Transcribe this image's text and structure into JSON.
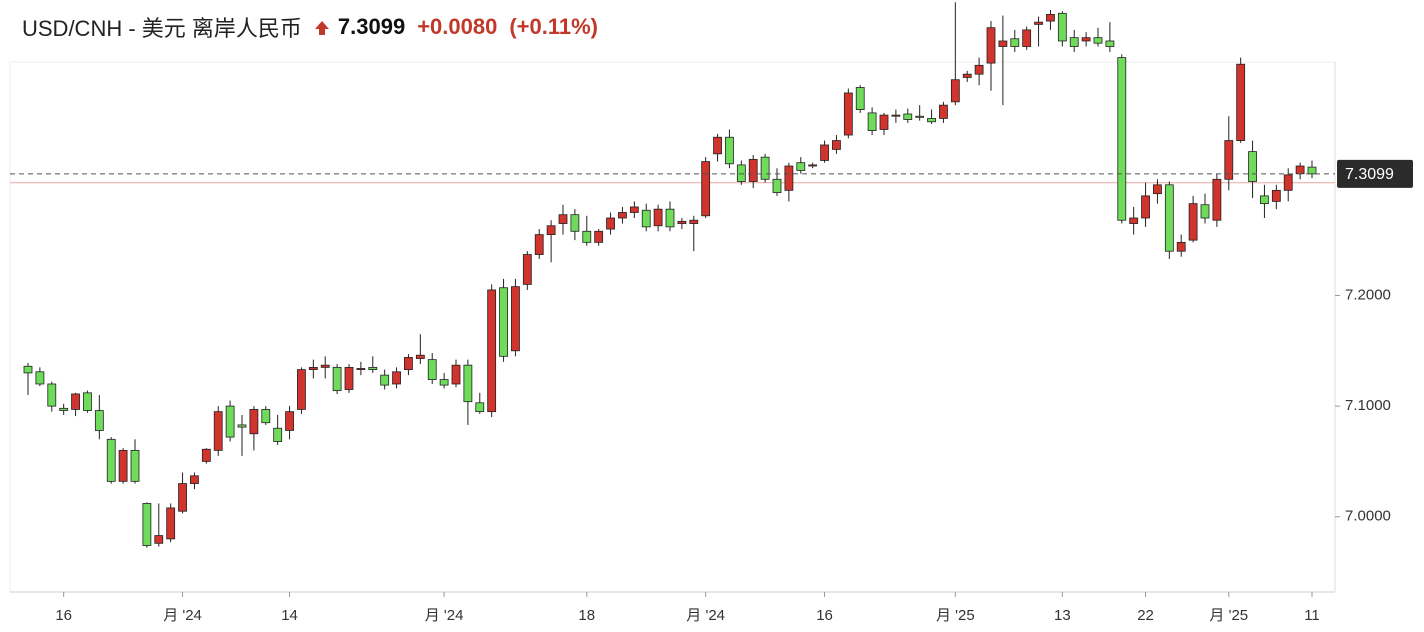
{
  "header": {
    "title": "USD/CNH - 美元 离岸人民币",
    "change": "+0.0080",
    "change_pct": "(+0.11%)"
  },
  "chart_data": {
    "type": "candlestick",
    "categories": [
      null,
      null,
      null,
      "16",
      null,
      null,
      null,
      null,
      null,
      null,
      null,
      null,
      null,
      "月 '24",
      null,
      null,
      null,
      null,
      null,
      null,
      null,
      null,
      "14",
      null,
      null,
      null,
      null,
      null,
      null,
      null,
      null,
      null,
      null,
      null,
      null,
      "月 '24",
      null,
      null,
      null,
      null,
      null,
      null,
      null,
      null,
      null,
      null,
      null,
      "18",
      null,
      null,
      null,
      null,
      null,
      null,
      null,
      null,
      null,
      "月 '24",
      null,
      null,
      null,
      null,
      null,
      null,
      null,
      null,
      null,
      "16",
      null,
      null,
      null,
      null,
      null,
      null,
      null,
      null,
      null,
      null,
      "月 '25",
      null,
      null,
      null,
      null,
      null,
      null,
      null,
      null,
      "13",
      null,
      null,
      null,
      null,
      null,
      null,
      "22",
      null,
      null,
      null,
      null,
      null,
      null,
      "月 '25",
      null,
      null,
      null,
      null,
      null,
      null,
      "11"
    ],
    "open": [
      7.136,
      7.131,
      7.12,
      7.098,
      7.097,
      7.112,
      7.096,
      7.07,
      7.032,
      7.06,
      7.012,
      6.976,
      6.98,
      7.005,
      7.03,
      7.05,
      7.06,
      7.1,
      7.083,
      7.075,
      7.097,
      7.08,
      7.078,
      7.097,
      7.133,
      7.135,
      7.135,
      7.115,
      7.133,
      7.135,
      7.128,
      7.12,
      7.133,
      7.143,
      7.142,
      7.124,
      7.12,
      7.137,
      7.103,
      7.095,
      7.207,
      7.15,
      7.21,
      7.237,
      7.255,
      7.265,
      7.273,
      7.258,
      7.248,
      7.26,
      7.27,
      7.275,
      7.277,
      7.263,
      7.278,
      7.265,
      7.265,
      7.272,
      7.328,
      7.343,
      7.318,
      7.303,
      7.325,
      7.305,
      7.295,
      7.32,
      7.317,
      7.322,
      7.332,
      7.345,
      7.388,
      7.365,
      7.35,
      7.362,
      7.364,
      7.362,
      7.36,
      7.36,
      7.375,
      7.397,
      7.4,
      7.41,
      7.425,
      7.432,
      7.425,
      7.445,
      7.448,
      7.455,
      7.433,
      7.43,
      7.433,
      7.43,
      7.415,
      7.265,
      7.27,
      7.292,
      7.3,
      7.24,
      7.25,
      7.282,
      7.268,
      7.305,
      7.34,
      7.33,
      7.29,
      7.285,
      7.295,
      7.31,
      7.316
    ],
    "high": [
      7.139,
      7.135,
      7.122,
      7.102,
      7.112,
      7.114,
      7.11,
      7.072,
      7.062,
      7.07,
      7.013,
      7.012,
      7.012,
      7.04,
      7.04,
      7.062,
      7.1,
      7.105,
      7.092,
      7.1,
      7.1,
      7.092,
      7.1,
      7.135,
      7.142,
      7.145,
      7.138,
      7.138,
      7.14,
      7.145,
      7.133,
      7.135,
      7.147,
      7.165,
      7.148,
      7.13,
      7.142,
      7.142,
      7.112,
      7.21,
      7.215,
      7.215,
      7.24,
      7.26,
      7.268,
      7.282,
      7.278,
      7.272,
      7.26,
      7.275,
      7.28,
      7.285,
      7.283,
      7.282,
      7.285,
      7.27,
      7.272,
      7.325,
      7.346,
      7.35,
      7.322,
      7.327,
      7.328,
      7.315,
      7.32,
      7.325,
      7.32,
      7.34,
      7.345,
      7.387,
      7.39,
      7.37,
      7.365,
      7.368,
      7.369,
      7.372,
      7.368,
      7.375,
      7.465,
      7.403,
      7.415,
      7.448,
      7.453,
      7.44,
      7.443,
      7.452,
      7.458,
      7.457,
      7.44,
      7.438,
      7.442,
      7.447,
      7.418,
      7.28,
      7.302,
      7.305,
      7.303,
      7.255,
      7.29,
      7.292,
      7.31,
      7.362,
      7.415,
      7.34,
      7.3,
      7.3,
      7.315,
      7.32,
      7.322
    ],
    "low": [
      7.11,
      7.118,
      7.095,
      7.092,
      7.091,
      7.094,
      7.07,
      7.03,
      7.03,
      7.03,
      6.972,
      6.973,
      6.977,
      7.003,
      7.025,
      7.048,
      7.055,
      7.068,
      7.055,
      7.06,
      7.083,
      7.065,
      7.07,
      7.093,
      7.125,
      7.125,
      7.111,
      7.112,
      7.128,
      7.13,
      7.115,
      7.116,
      7.128,
      7.138,
      7.12,
      7.116,
      7.117,
      7.083,
      7.093,
      7.09,
      7.14,
      7.145,
      7.205,
      7.233,
      7.23,
      7.255,
      7.25,
      7.245,
      7.245,
      7.255,
      7.265,
      7.27,
      7.258,
      7.258,
      7.258,
      7.26,
      7.24,
      7.27,
      7.321,
      7.315,
      7.3,
      7.297,
      7.302,
      7.29,
      7.285,
      7.31,
      7.315,
      7.32,
      7.328,
      7.342,
      7.365,
      7.345,
      7.345,
      7.356,
      7.356,
      7.358,
      7.355,
      7.356,
      7.372,
      7.393,
      7.39,
      7.385,
      7.372,
      7.42,
      7.422,
      7.425,
      7.44,
      7.425,
      7.42,
      7.425,
      7.425,
      7.42,
      7.265,
      7.255,
      7.262,
      7.283,
      7.233,
      7.235,
      7.248,
      7.265,
      7.262,
      7.295,
      7.338,
      7.288,
      7.27,
      7.278,
      7.285,
      7.305,
      7.306
    ],
    "close": [
      7.13,
      7.12,
      7.1,
      7.096,
      7.111,
      7.096,
      7.078,
      7.032,
      7.06,
      7.032,
      6.974,
      6.983,
      7.008,
      7.03,
      7.037,
      7.061,
      7.095,
      7.072,
      7.081,
      7.097,
      7.085,
      7.068,
      7.095,
      7.133,
      7.135,
      7.137,
      7.114,
      7.135,
      7.134,
      7.133,
      7.119,
      7.131,
      7.144,
      7.146,
      7.124,
      7.119,
      7.137,
      7.104,
      7.095,
      7.205,
      7.145,
      7.208,
      7.237,
      7.255,
      7.263,
      7.273,
      7.258,
      7.248,
      7.258,
      7.27,
      7.275,
      7.28,
      7.262,
      7.278,
      7.262,
      7.267,
      7.268,
      7.321,
      7.343,
      7.319,
      7.303,
      7.323,
      7.305,
      7.293,
      7.317,
      7.313,
      7.318,
      7.336,
      7.34,
      7.383,
      7.368,
      7.349,
      7.363,
      7.363,
      7.359,
      7.361,
      7.357,
      7.372,
      7.395,
      7.4,
      7.408,
      7.442,
      7.43,
      7.425,
      7.44,
      7.447,
      7.454,
      7.43,
      7.425,
      7.433,
      7.428,
      7.425,
      7.268,
      7.27,
      7.29,
      7.3,
      7.24,
      7.248,
      7.283,
      7.27,
      7.305,
      7.34,
      7.409,
      7.303,
      7.283,
      7.295,
      7.309,
      7.317,
      7.3099
    ],
    "up_color": "#d0342c",
    "down_color": "#6edb5a",
    "previous_close": 7.3019,
    "ylim": [
      6.932,
      7.411
    ],
    "yticks": [
      {
        "value": 7,
        "label": "7.0000"
      },
      {
        "value": 7.1,
        "label": "7.1000"
      },
      {
        "value": 7.2,
        "label": "7.2000"
      }
    ]
  }
}
